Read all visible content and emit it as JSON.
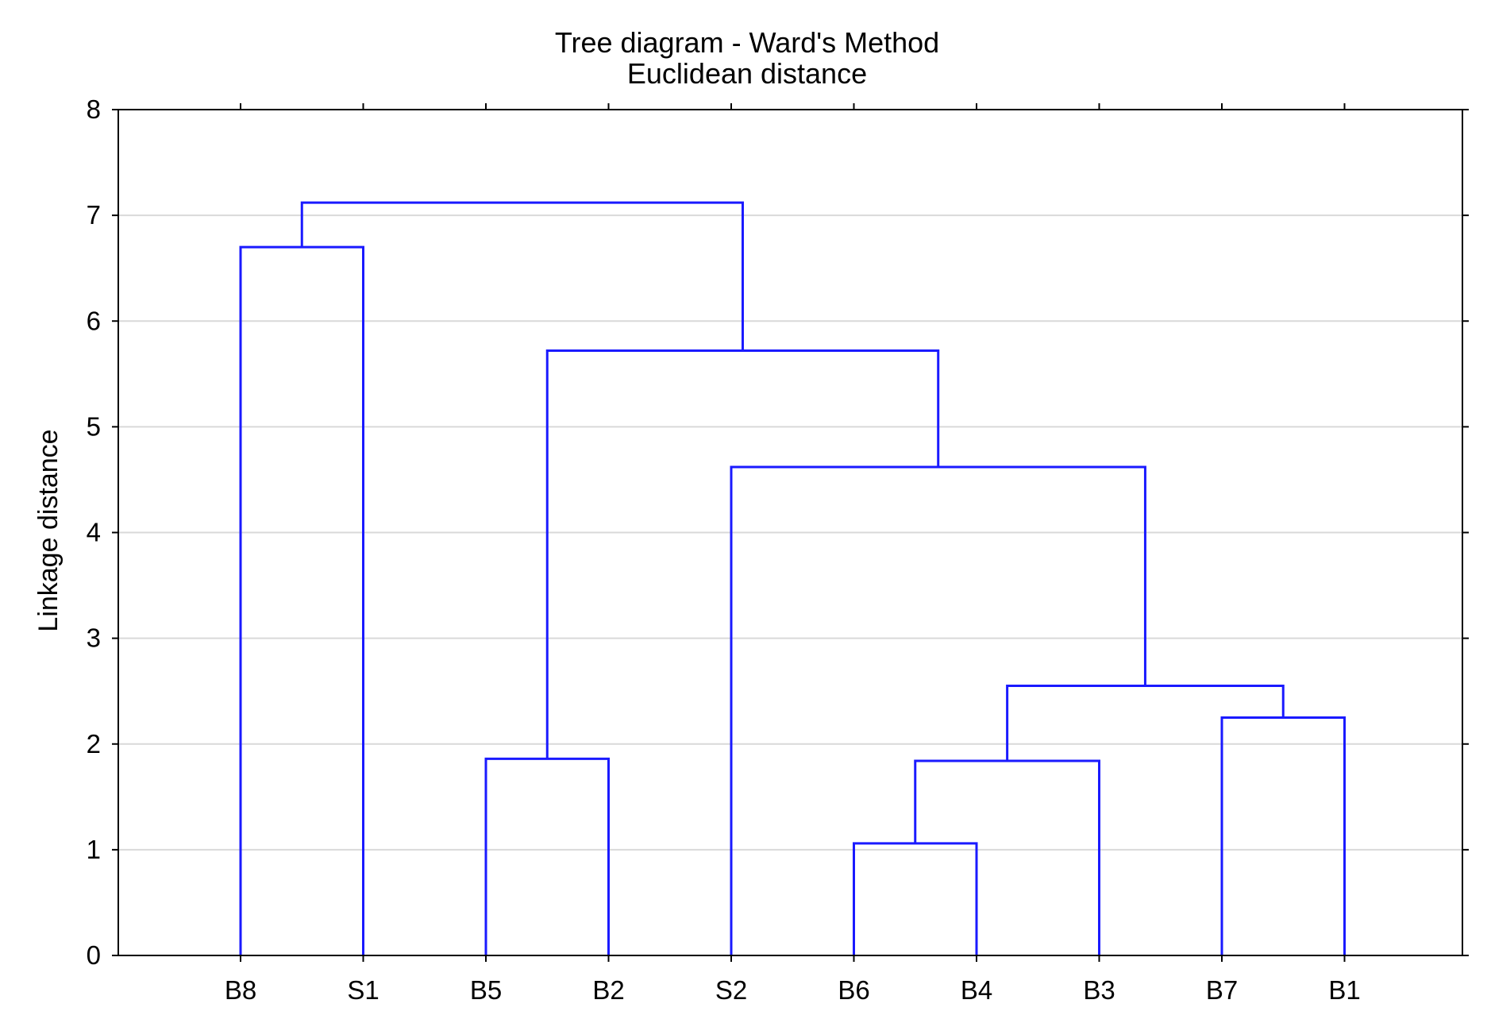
{
  "chart_data": {
    "type": "dendrogram",
    "title": "Tree diagram - Ward's Method",
    "subtitle": "Euclidean distance",
    "ylabel": "Linkage distance",
    "xlabel": "",
    "ylim": [
      0,
      8
    ],
    "yticks": [
      "0",
      "1",
      "2",
      "3",
      "4",
      "5",
      "6",
      "7",
      "8"
    ],
    "grid": true,
    "leaves": [
      "B8",
      "S1",
      "B5",
      "B2",
      "S2",
      "B6",
      "B4",
      "B3",
      "B7",
      "B1"
    ],
    "merges": [
      {
        "id": "m1",
        "left": "B6",
        "right": "B4",
        "height": 1.06
      },
      {
        "id": "m2",
        "left": "m1",
        "right": "B3",
        "height": 1.84
      },
      {
        "id": "m3",
        "left": "B5",
        "right": "B2",
        "height": 1.86
      },
      {
        "id": "m4",
        "left": "B7",
        "right": "B1",
        "height": 2.25
      },
      {
        "id": "m5",
        "left": "m2",
        "right": "m4",
        "height": 2.55
      },
      {
        "id": "m6",
        "left": "S2",
        "right": "m5",
        "height": 4.62
      },
      {
        "id": "m7",
        "left": "m3",
        "right": "m6",
        "height": 5.72
      },
      {
        "id": "m8",
        "left": "B8",
        "right": "S1",
        "height": 6.7
      },
      {
        "id": "m9",
        "left": "m8",
        "right": "m7",
        "height": 7.12
      }
    ],
    "line_color": "#1a1aff",
    "grid_color": "#d9d9d9",
    "axis_color": "#000000"
  }
}
